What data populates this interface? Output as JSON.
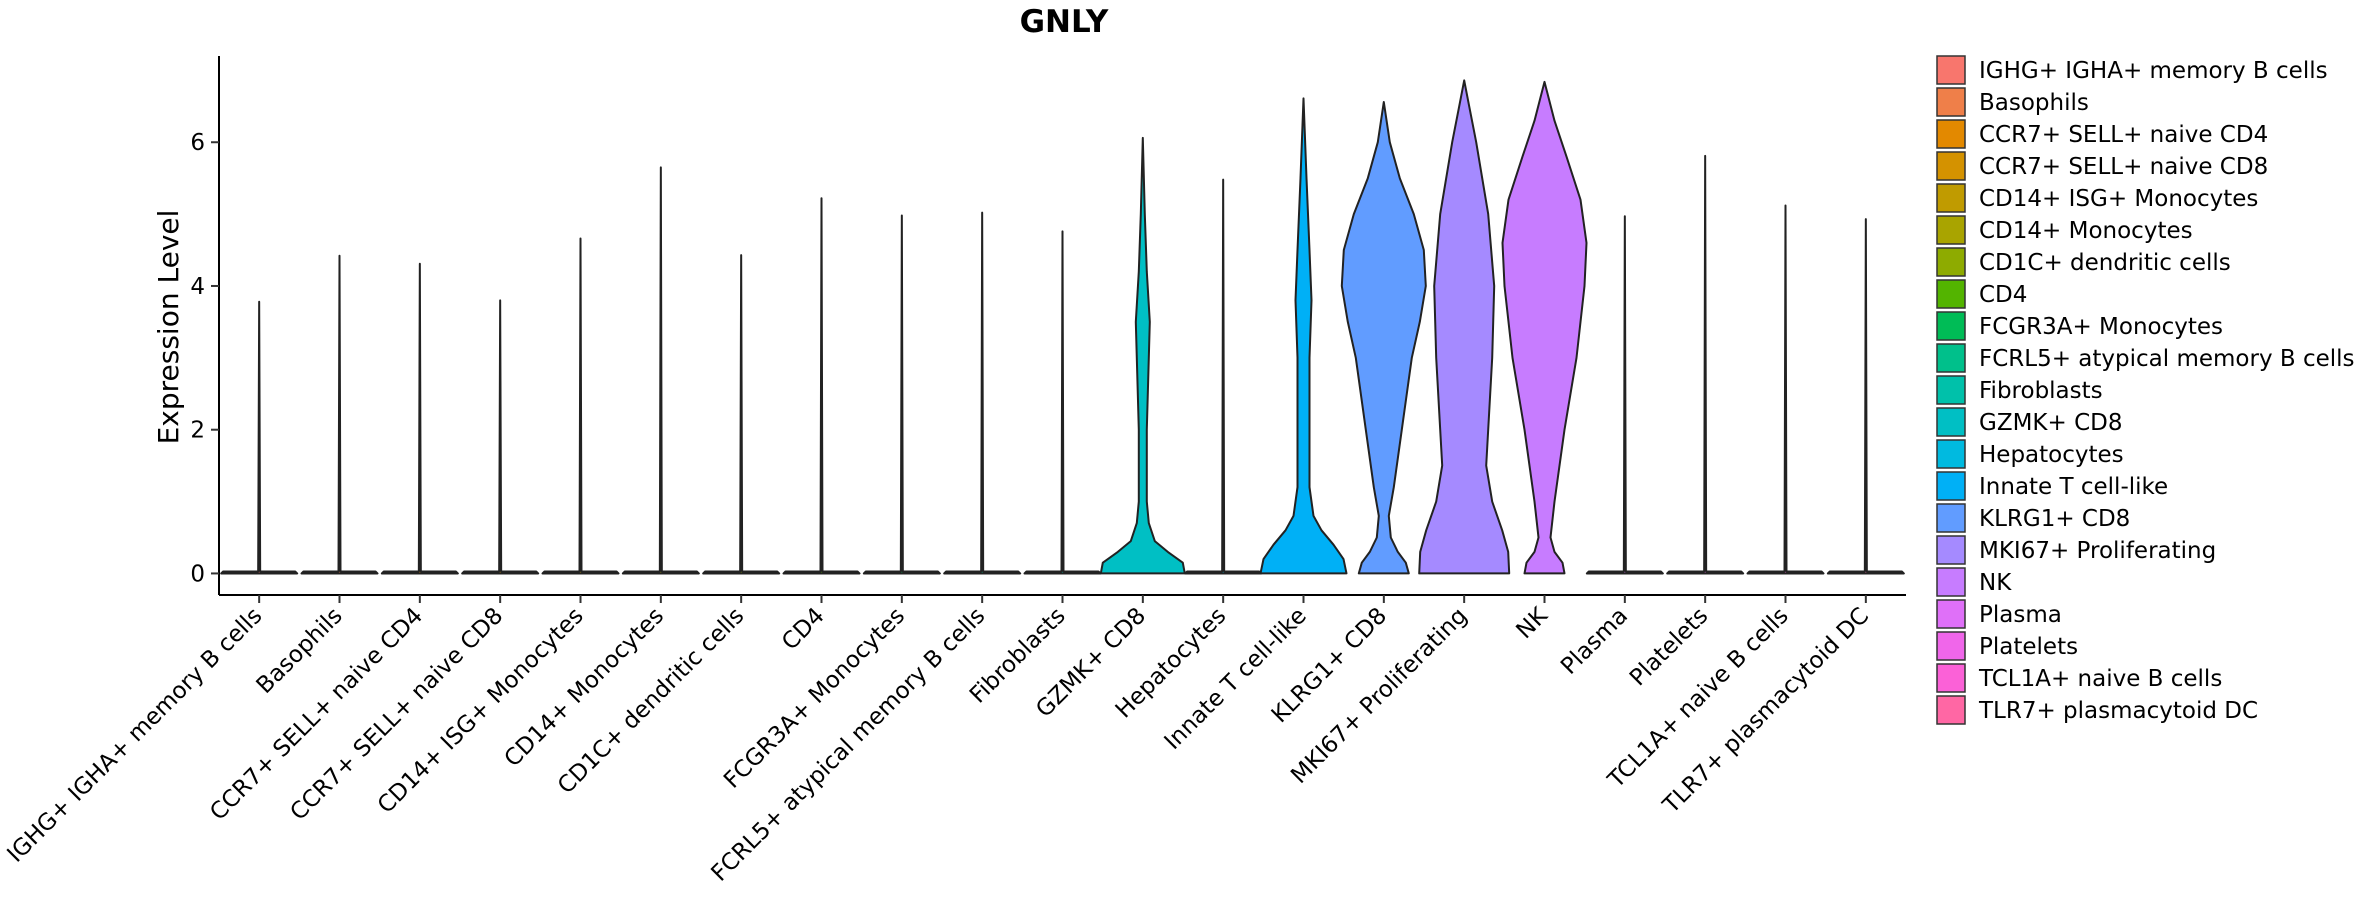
{
  "chart_data": {
    "type": "violin",
    "title": "GNLY",
    "xlabel": "",
    "ylabel": "Expression Level",
    "ylim": [
      -0.3,
      7.2
    ],
    "yticks": [
      0,
      2,
      4,
      6
    ],
    "categories": [
      " IGHG+ IGHA+ memory B cells",
      "Basophils",
      "CCR7+ SELL+ naive CD4",
      "CCR7+ SELL+ naive CD8",
      "CD14+ ISG+ Monocytes",
      "CD14+ Monocytes",
      "CD1C+ dendritic cells",
      "CD4",
      "FCGR3A+ Monocytes",
      "FCRL5+ atypical memory B cells",
      "Fibroblasts",
      "GZMK+ CD8",
      "Hepatocytes",
      "Innate T cell-like",
      "KLRG1+ CD8",
      "MKI67+ Proliferating",
      "NK",
      "Plasma",
      "Platelets",
      "TCL1A+ naive B cells",
      "TLR7+ plasmacytoid DC"
    ],
    "colors": [
      "#F8766D",
      "#EF7F49",
      "#E38900",
      "#D49200",
      "#C09B00",
      "#A9A400",
      "#8EAB00",
      "#53B400",
      "#00BC56",
      "#00C08B",
      "#00C1AA",
      "#00BFC4",
      "#00BAE0",
      "#00B0F6",
      "#619CFF",
      "#A58AFF",
      "#C77CFF",
      "#DF70F8",
      "#F066EA",
      "#FB61D7",
      "#FF67A4"
    ],
    "max_values": [
      3.78,
      4.42,
      4.31,
      3.8,
      4.66,
      5.65,
      4.43,
      5.22,
      4.98,
      5.02,
      4.76,
      6.06,
      5.48,
      6.61,
      6.56,
      6.86,
      6.84,
      4.97,
      5.81,
      5.12,
      4.93
    ],
    "legend": {
      "position": "right",
      "labels": [
        " IGHG+ IGHA+ memory B cells",
        "Basophils",
        "CCR7+ SELL+ naive CD4",
        "CCR7+ SELL+ naive CD8",
        "CD14+ ISG+ Monocytes",
        "CD14+ Monocytes",
        "CD1C+ dendritic cells",
        "CD4",
        "FCGR3A+ Monocytes",
        "FCRL5+ atypical memory B cells",
        "Fibroblasts",
        "GZMK+ CD8",
        "Hepatocytes",
        "Innate T cell-like",
        "KLRG1+ CD8",
        "MKI67+ Proliferating",
        "NK",
        "Plasma",
        "Platelets",
        "TCL1A+ naive B cells",
        "TLR7+ plasmacytoid DC"
      ]
    }
  }
}
